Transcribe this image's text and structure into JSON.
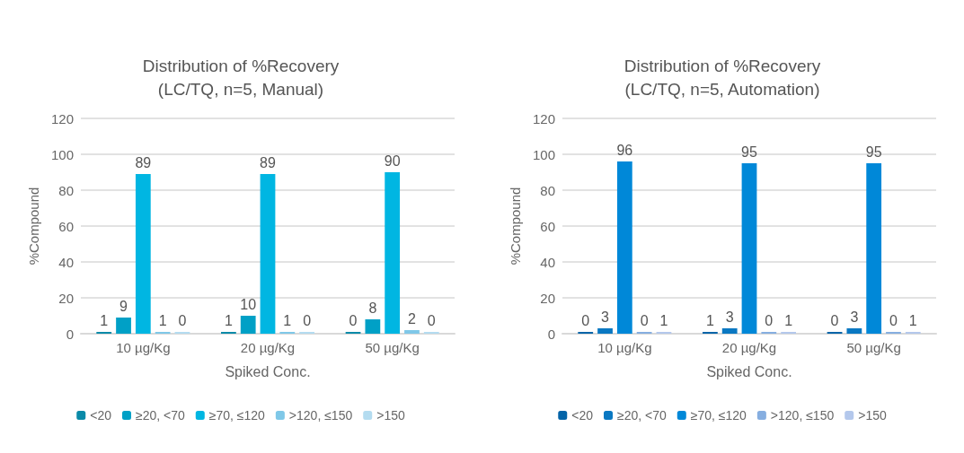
{
  "chart_data": [
    {
      "type": "bar",
      "title": "Distribution of %Recovery\n(LC/TQ, n=5, Manual)",
      "xlabel": "Spiked Conc.",
      "ylabel": "%Compound",
      "categories": [
        "10 µg/Kg",
        "20 µg/Kg",
        "50 µg/Kg"
      ],
      "ylim": [
        0,
        120
      ],
      "yticks": [
        0,
        20,
        40,
        60,
        80,
        100,
        120
      ],
      "grid": "y",
      "legend": "bottom",
      "data_labels": true,
      "series": [
        {
          "name": "<20",
          "color": "#0a8aa8",
          "values": [
            1,
            1,
            0
          ]
        },
        {
          "name": "≥20, <70",
          "color": "#00a0c6",
          "values": [
            9,
            10,
            8
          ]
        },
        {
          "name": "≥70, ≤120",
          "color": "#00b6e2",
          "values": [
            89,
            89,
            90
          ]
        },
        {
          "name": ">120, ≤150",
          "color": "#7fc8e8",
          "values": [
            1,
            1,
            2
          ]
        },
        {
          "name": ">150",
          "color": "#b4dcf0",
          "values": [
            0,
            0,
            0
          ]
        }
      ]
    },
    {
      "type": "bar",
      "title": "Distribution of %Recovery\n(LC/TQ, n=5, Automation)",
      "xlabel": "Spiked Conc.",
      "ylabel": "%Compound",
      "categories": [
        "10 µg/Kg",
        "20 µg/Kg",
        "50 µg/Kg"
      ],
      "ylim": [
        0,
        120
      ],
      "yticks": [
        0,
        20,
        40,
        60,
        80,
        100,
        120
      ],
      "grid": "y",
      "legend": "bottom",
      "data_labels": true,
      "series": [
        {
          "name": "<20",
          "color": "#0464a8",
          "values": [
            0,
            1,
            0
          ]
        },
        {
          "name": "≥20, <70",
          "color": "#0a78c2",
          "values": [
            3,
            3,
            3
          ]
        },
        {
          "name": "≥70, ≤120",
          "color": "#0088d8",
          "values": [
            96,
            95,
            95
          ]
        },
        {
          "name": ">120, ≤150",
          "color": "#86aee0",
          "values": [
            0,
            0,
            0
          ]
        },
        {
          "name": ">150",
          "color": "#b4c8ec",
          "values": [
            1,
            1,
            1
          ]
        }
      ]
    }
  ]
}
